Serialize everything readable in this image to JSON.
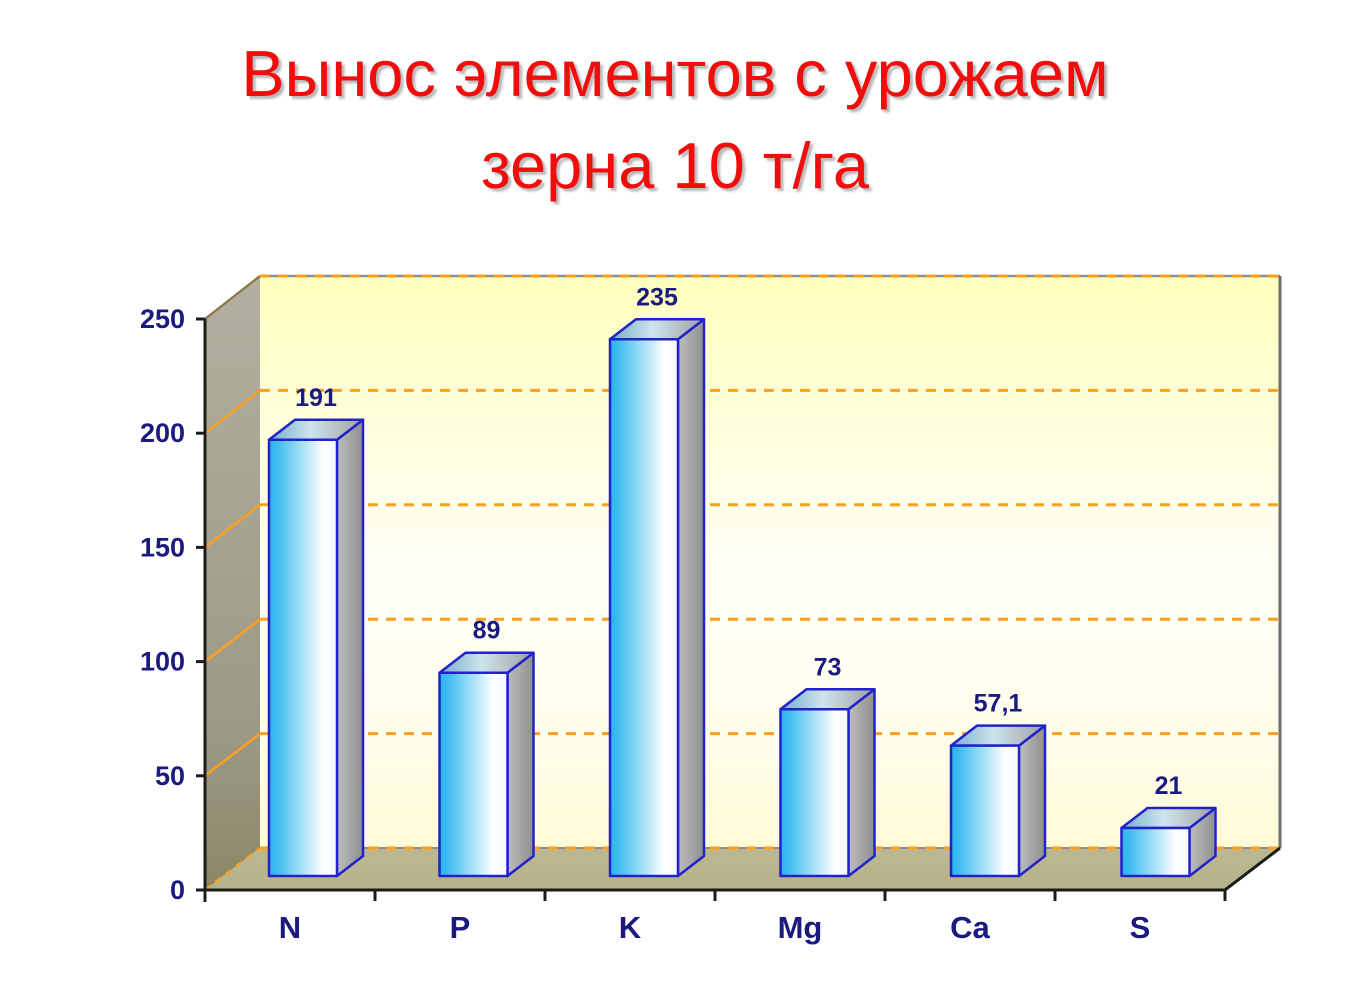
{
  "slide": {
    "title_line1": "Вынос элементов с урожаем",
    "title_line2": "зерна 10 т/га",
    "title_color": "#f20d0d"
  },
  "chart_data": {
    "type": "bar",
    "style": "3d-column",
    "title": "Вынос элементов с урожаем зерна 10 т/га",
    "categories": [
      "N",
      "P",
      "K",
      "Mg",
      "Ca",
      "S"
    ],
    "values": [
      191,
      89,
      235,
      73,
      57.1,
      21
    ],
    "value_labels": [
      "191",
      "89",
      "235",
      "73",
      "57,1",
      "21"
    ],
    "xlabel": "",
    "ylabel": "",
    "ylim": [
      0,
      250
    ],
    "ytick_step": 50,
    "yticks": [
      0,
      50,
      100,
      150,
      200,
      250
    ],
    "grid": "horizontal dashed on back wall, solid diagonals on side wall",
    "legend_position": "none",
    "colors": {
      "title_red": "#f20d0d",
      "label_navy": "#1a1a80",
      "bar_front_left": "#29b4ec",
      "bar_front_right": "#ffffff",
      "bar_outline": "#2222cd",
      "bar_side_light": "#bdbdbd",
      "bar_side_dark": "#8f8f8f",
      "bar_top_left": "#74aeca",
      "bar_top_right": "#a0a0a0",
      "gridline_orange": "#ff9f1e",
      "wall_yellow_top": "#ffffbe",
      "wall_white_mid": "#fffef6",
      "wall_yellow_bottom": "#fffbd6",
      "floor_khaki": "#b5b28a",
      "side_wall_top": "#b2afa0",
      "side_wall_bottom": "#8a8766",
      "axis_black": "#1c1c1c"
    }
  }
}
